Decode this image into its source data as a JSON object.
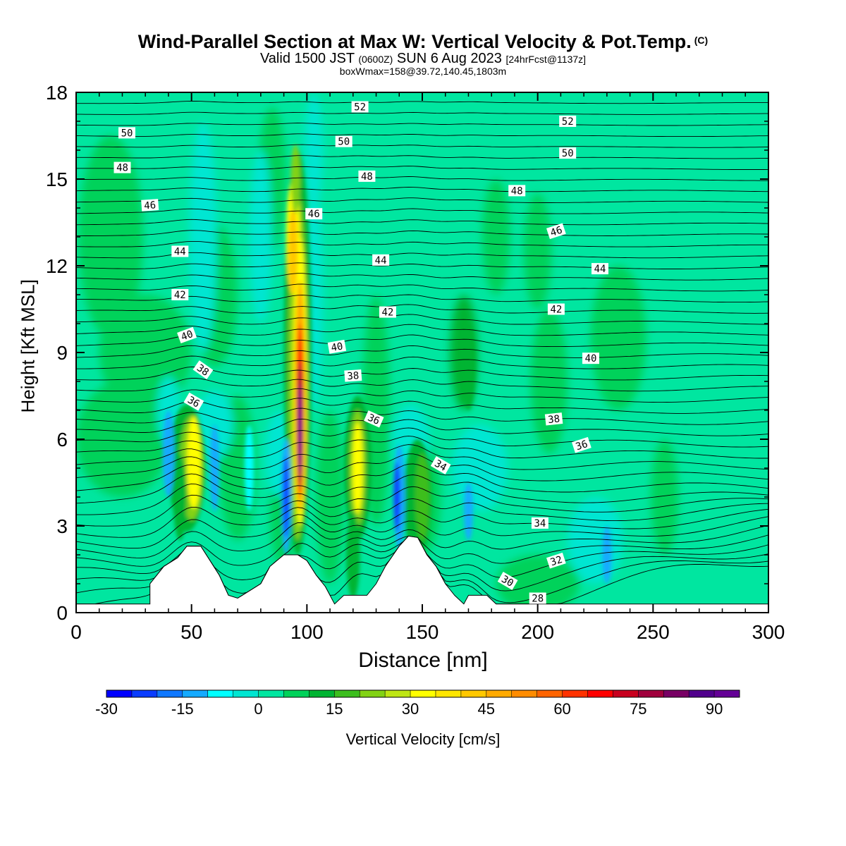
{
  "header": {
    "title": "Wind-Parallel Section at Max W: Vertical Velocity & Pot.Temp.",
    "title_mark": "(C)",
    "subtitle_a": "Valid 1500 JST",
    "subtitle_b": "(0600Z)",
    "subtitle_c": "SUN 6 Aug 2023",
    "subtitle_d": "[24hrFcst@1137z]",
    "info": "boxWmax=158@39.72,140.45,1803m"
  },
  "chart_data": {
    "type": "heatmap",
    "xlabel": "Distance [nm]",
    "ylabel": "Height [Kft MSL]",
    "xlim": [
      0,
      300
    ],
    "ylim": [
      0,
      18
    ],
    "xticks": [
      "0",
      "50",
      "100",
      "150",
      "200",
      "250",
      "300"
    ],
    "yticks": [
      "0",
      "3",
      "6",
      "9",
      "12",
      "15",
      "18"
    ],
    "colorbar": {
      "title": "Vertical Velocity [cm/s]",
      "tick_labels": [
        "-30",
        "-15",
        "0",
        "15",
        "30",
        "45",
        "60",
        "75",
        "90"
      ],
      "range": [
        -30,
        95
      ],
      "step": 5,
      "colors": [
        "#0000ff",
        "#0a3cff",
        "#0f78ff",
        "#14aaff",
        "#00ffff",
        "#00e6d2",
        "#00e6a0",
        "#00d25a",
        "#00b432",
        "#3cbe1e",
        "#82d214",
        "#bee614",
        "#ffff00",
        "#ffe600",
        "#ffc800",
        "#ffaa00",
        "#ff8c00",
        "#ff6400",
        "#ff3200",
        "#ff0000",
        "#c8001e",
        "#a0003c",
        "#780064",
        "#50008c",
        "#640096"
      ]
    },
    "contour_labels_theta": [
      "28",
      "30",
      "32",
      "34",
      "36",
      "38",
      "40",
      "42",
      "44",
      "46",
      "48",
      "50",
      "52"
    ],
    "updrafts_max_cm_s": [
      {
        "x_nm": 52,
        "z_kft": 5.2,
        "w": 35
      },
      {
        "x_nm": 97,
        "z_kft": 6.5,
        "w": 95
      },
      {
        "x_nm": 122,
        "z_kft": 5,
        "w": 30
      },
      {
        "x_nm": 170,
        "z_kft": 8.5,
        "w": 15
      }
    ],
    "terrain_peaks_kft": [
      {
        "x_nm": 52,
        "z_kft": 2.3
      },
      {
        "x_nm": 92,
        "z_kft": 2.0
      },
      {
        "x_nm": 143,
        "z_kft": 2.65
      }
    ]
  }
}
